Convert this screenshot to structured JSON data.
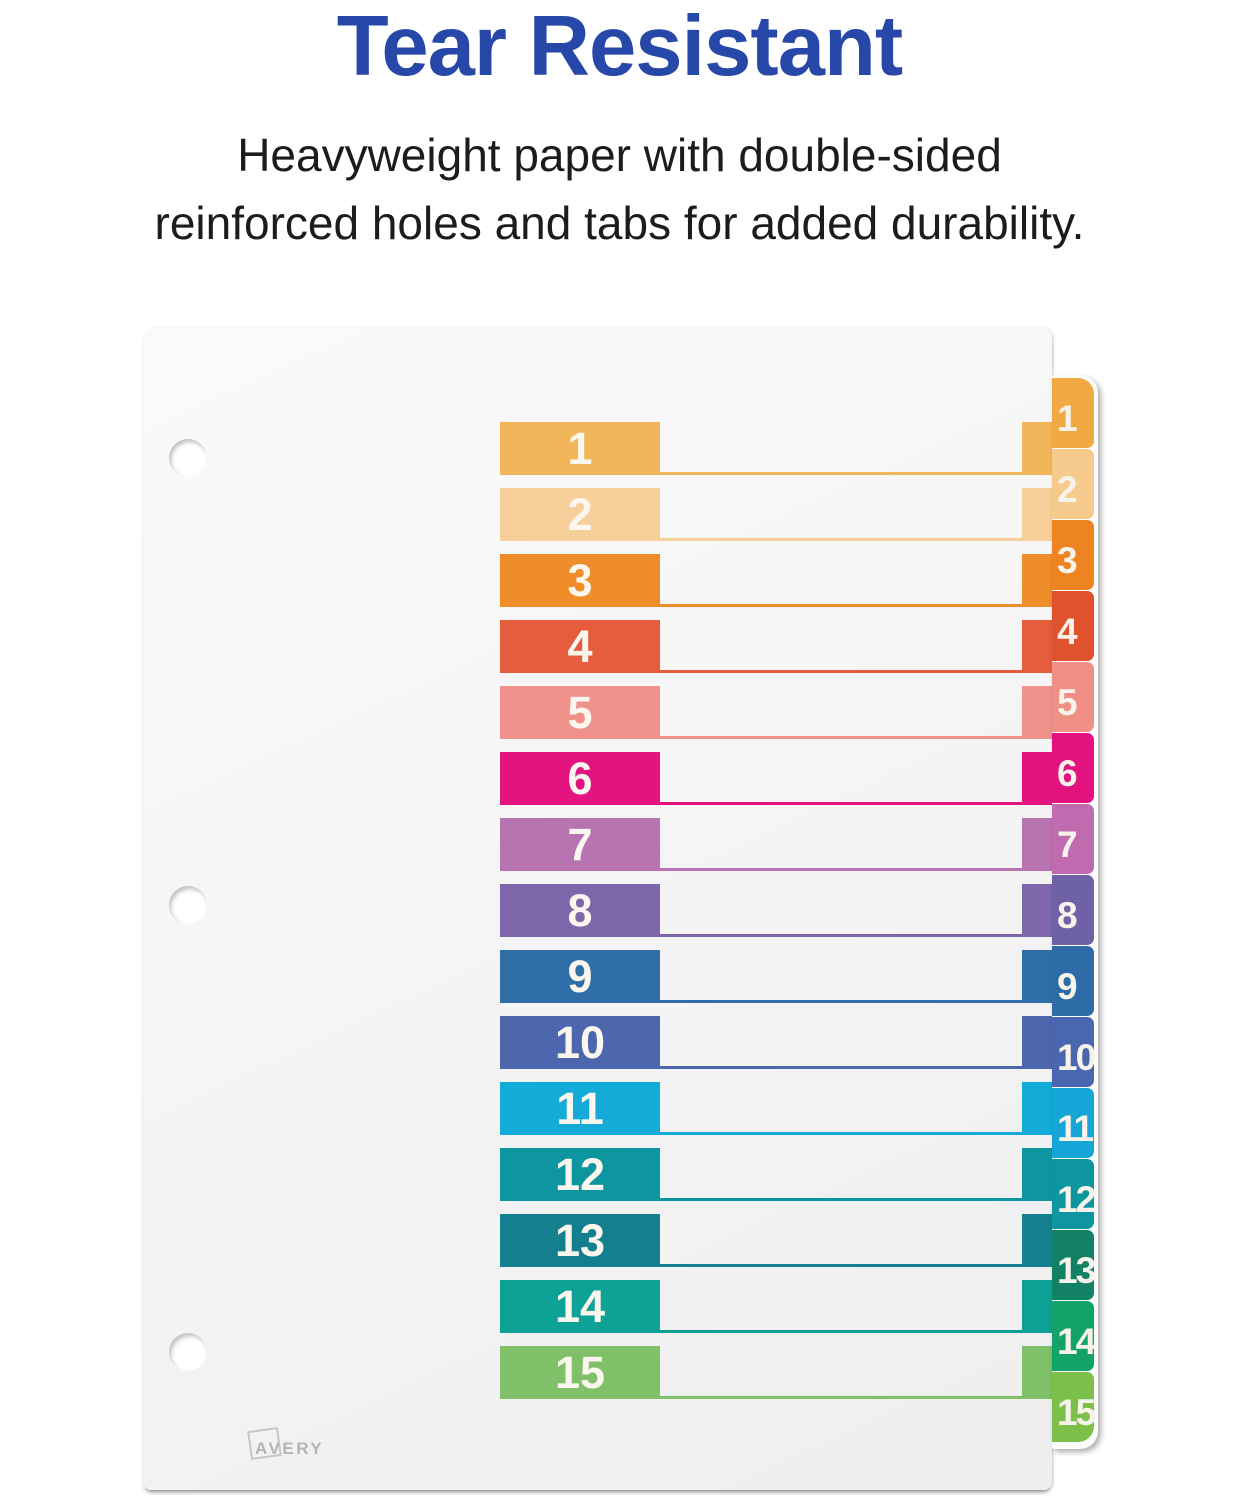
{
  "header": {
    "title": "Tear Resistant",
    "subtitle_line1": "Heavyweight paper with double-sided",
    "subtitle_line2": "reinforced holes and tabs for added durability."
  },
  "sheet": {
    "brand": "AVERY"
  },
  "colors": {
    "title_blue": "#2748a8",
    "subtitle_black": "#1c1c1e",
    "paper": "#f4f4f5",
    "number_text": "#fcf7ee"
  },
  "rows": [
    {
      "label": "1",
      "box": "#f2b65a",
      "tab": "#f0a943"
    },
    {
      "label": "2",
      "box": "#f6cf9b",
      "tab": "#f5ca8c"
    },
    {
      "label": "3",
      "box": "#ee8d2a",
      "tab": "#ee8322"
    },
    {
      "label": "4",
      "box": "#e55d3d",
      "tab": "#e0512d"
    },
    {
      "label": "5",
      "box": "#f0928b",
      "tab": "#ef8f85"
    },
    {
      "label": "6",
      "box": "#e31480",
      "tab": "#e2127f"
    },
    {
      "label": "7",
      "box": "#b873b1",
      "tab": "#c06bb0"
    },
    {
      "label": "8",
      "box": "#7d66a9",
      "tab": "#6f61a5"
    },
    {
      "label": "9",
      "box": "#2f6ea6",
      "tab": "#2d6ca7"
    },
    {
      "label": "10",
      "box": "#4c67ae",
      "tab": "#4a66ae"
    },
    {
      "label": "11",
      "box": "#14abd9",
      "tab": "#16a5d6"
    },
    {
      "label": "12",
      "box": "#0e96a0",
      "tab": "#0d96a0"
    },
    {
      "label": "13",
      "box": "#14808f",
      "tab": "#128165"
    },
    {
      "label": "14",
      "box": "#0da295",
      "tab": "#13a36a"
    },
    {
      "label": "15",
      "box": "#7fc069",
      "tab": "#7cc04a"
    }
  ]
}
